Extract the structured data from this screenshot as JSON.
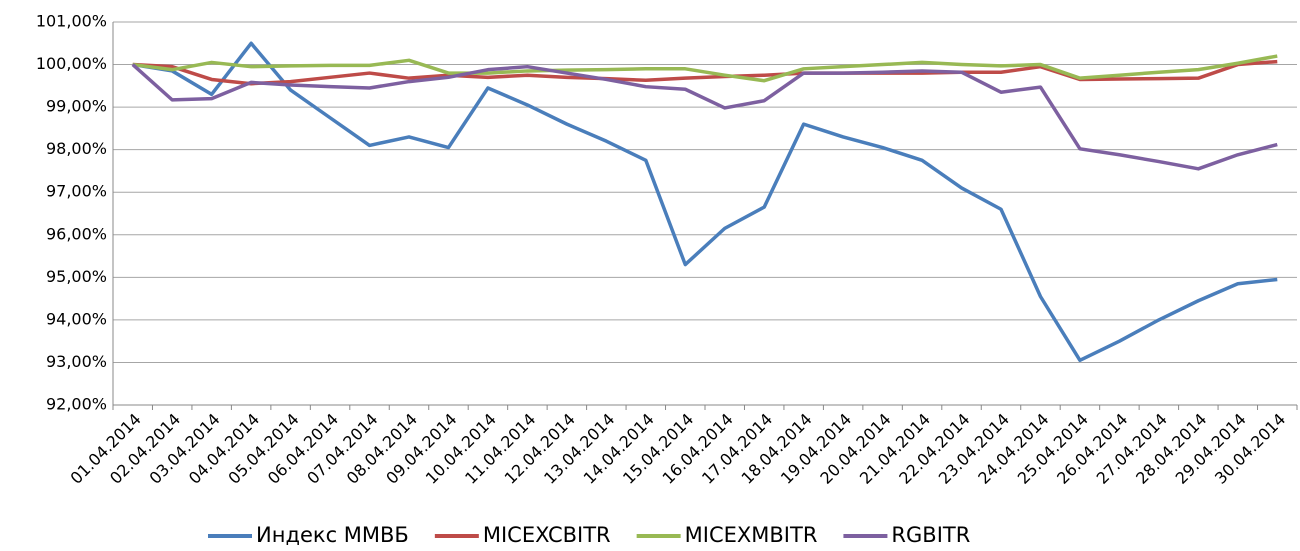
{
  "chart_data": {
    "type": "line",
    "categories": [
      "01.04.2014",
      "02.04.2014",
      "03.04.2014",
      "04.04.2014",
      "05.04.2014",
      "06.04.2014",
      "07.04.2014",
      "08.04.2014",
      "09.04.2014",
      "10.04.2014",
      "11.04.2014",
      "12.04.2014",
      "13.04.2014",
      "14.04.2014",
      "15.04.2014",
      "16.04.2014",
      "17.04.2014",
      "18.04.2014",
      "19.04.2014",
      "20.04.2014",
      "21.04.2014",
      "22.04.2014",
      "23.04.2014",
      "24.04.2014",
      "25.04.2014",
      "26.04.2014",
      "27.04.2014",
      "28.04.2014",
      "29.04.2014",
      "30.04.2014"
    ],
    "series": [
      {
        "name": "Индекс ММВБ",
        "color": "#4a7ebb",
        "values": [
          100.0,
          99.85,
          99.3,
          100.5,
          99.4,
          98.75,
          98.1,
          98.3,
          98.05,
          99.45,
          99.05,
          98.6,
          98.2,
          97.75,
          95.3,
          96.15,
          96.65,
          98.6,
          98.3,
          98.05,
          97.75,
          97.1,
          96.6,
          94.55,
          93.05,
          93.5,
          94.0,
          94.45,
          94.85,
          94.95
        ]
      },
      {
        "name": "MICEXCBITR",
        "color": "#be4b48",
        "values": [
          100.0,
          99.95,
          99.65,
          99.55,
          99.6,
          99.7,
          99.8,
          99.68,
          99.75,
          99.7,
          99.75,
          99.7,
          99.67,
          99.63,
          99.68,
          99.72,
          99.75,
          99.8,
          99.8,
          99.8,
          99.8,
          99.82,
          99.82,
          99.95,
          99.65,
          99.66,
          99.67,
          99.68,
          100.0,
          100.07
        ]
      },
      {
        "name": "MICEXMBITR",
        "color": "#98b954",
        "values": [
          100.0,
          99.88,
          100.05,
          99.95,
          99.97,
          99.98,
          99.98,
          100.1,
          99.8,
          99.8,
          99.85,
          99.87,
          99.88,
          99.9,
          99.9,
          99.75,
          99.62,
          99.9,
          99.95,
          100.0,
          100.05,
          100.0,
          99.97,
          100.0,
          99.68,
          99.75,
          99.82,
          99.88,
          100.03,
          100.2
        ]
      },
      {
        "name": "RGBITR",
        "color": "#7d60a0",
        "values": [
          100.0,
          99.17,
          99.2,
          99.58,
          99.52,
          99.48,
          99.45,
          99.6,
          99.7,
          99.88,
          99.95,
          99.8,
          99.65,
          99.48,
          99.42,
          98.98,
          99.15,
          99.8,
          99.8,
          99.82,
          99.85,
          99.82,
          99.35,
          99.47,
          98.02,
          97.88,
          97.72,
          97.55,
          97.88,
          98.12
        ]
      }
    ],
    "ylim": [
      92,
      101
    ],
    "yticks": [
      {
        "value": 92,
        "label": "92,00%"
      },
      {
        "value": 93,
        "label": "93,00%"
      },
      {
        "value": 94,
        "label": "94,00%"
      },
      {
        "value": 95,
        "label": "95,00%"
      },
      {
        "value": 96,
        "label": "96,00%"
      },
      {
        "value": 97,
        "label": "97,00%"
      },
      {
        "value": 98,
        "label": "98,00%"
      },
      {
        "value": 99,
        "label": "99,00%"
      },
      {
        "value": 100,
        "label": "100,00%"
      },
      {
        "value": 101,
        "label": "101,00%"
      }
    ],
    "grid": true
  }
}
